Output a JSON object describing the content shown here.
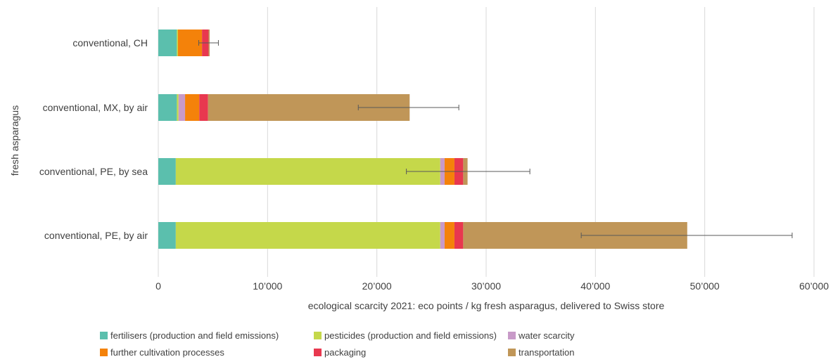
{
  "chart_data": {
    "type": "bar",
    "orientation": "horizontal",
    "stacked": true,
    "ylabel": "fresh asparagus",
    "xlabel": "ecological scarcity 2021: eco points / kg fresh asparagus, delivered to Swiss store",
    "xlim": [
      0,
      60000
    ],
    "x_ticks": [
      {
        "value": 0,
        "label": "0"
      },
      {
        "value": 10000,
        "label": "10’000"
      },
      {
        "value": 20000,
        "label": "20’000"
      },
      {
        "value": 30000,
        "label": "30’000"
      },
      {
        "value": 40000,
        "label": "40’000"
      },
      {
        "value": 50000,
        "label": "50’000"
      },
      {
        "value": 60000,
        "label": "60’000"
      }
    ],
    "grid": "vertical",
    "legend_position": "bottom",
    "categories": [
      "conventional, CH",
      "conventional, MX, by air",
      "conventional, PE, by sea",
      "conventional, PE, by air"
    ],
    "series": [
      {
        "name": "fertilisers (production and field emissions)",
        "color": "#5bbfad",
        "values": [
          1700,
          1700,
          1600,
          1600
        ]
      },
      {
        "name": "pesticides (production and field emissions)",
        "color": "#c5d84a",
        "values": [
          100,
          150,
          24200,
          24200
        ]
      },
      {
        "name": "water scarcity",
        "color": "#c89ac8",
        "values": [
          0,
          600,
          400,
          400
        ]
      },
      {
        "name": "further cultivation processes",
        "color": "#f4820a",
        "values": [
          2200,
          1300,
          900,
          900
        ]
      },
      {
        "name": "packaging",
        "color": "#e8384f",
        "values": [
          600,
          800,
          800,
          800
        ]
      },
      {
        "name": "transportation",
        "color": "#c09658",
        "values": [
          100,
          18450,
          400,
          20500
        ]
      }
    ],
    "error_bars": [
      {
        "center": 4700,
        "low": 3700,
        "high": 5500
      },
      {
        "center": 23000,
        "low": 18300,
        "high": 27500
      },
      {
        "center": 28300,
        "low": 22700,
        "high": 34000
      },
      {
        "center": 48400,
        "low": 38700,
        "high": 58000
      }
    ]
  }
}
